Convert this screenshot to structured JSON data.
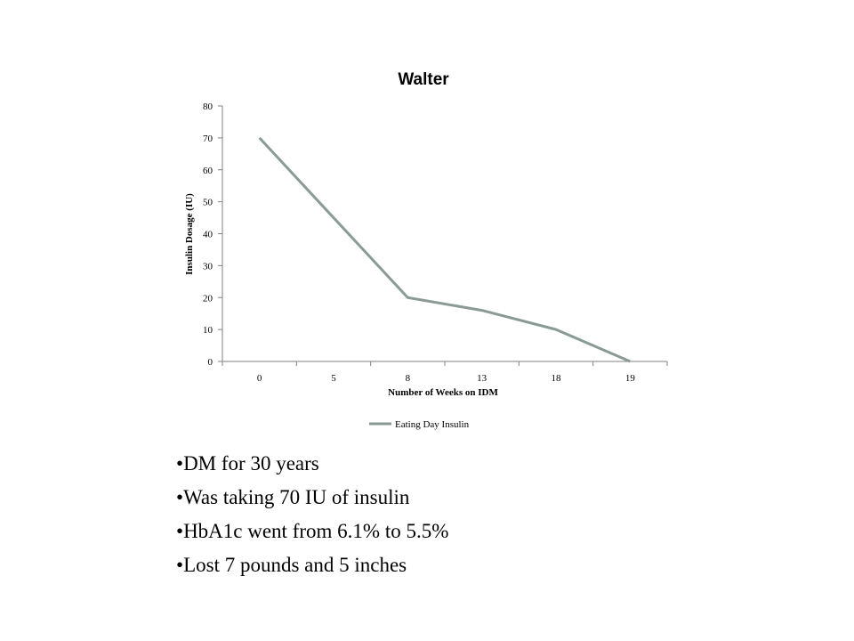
{
  "chart_data": {
    "type": "line",
    "title": "Walter",
    "xlabel": "Number of Weeks on IDM",
    "ylabel": "Insulin Dosage (IU)",
    "categories": [
      "0",
      "5",
      "8",
      "13",
      "18",
      "19"
    ],
    "series": [
      {
        "name": "Eating Day Insulin",
        "values": [
          70,
          45,
          20,
          16,
          10,
          0
        ]
      }
    ],
    "ylim": [
      0,
      80
    ],
    "yticks": [
      0,
      10,
      20,
      30,
      40,
      50,
      60,
      70,
      80
    ],
    "grid": false,
    "legend": "bottom",
    "line_color": "#8a9a96"
  },
  "bullets": [
    "DM for 30 years",
    "Was taking 70 IU of insulin",
    "HbA1c went from 6.1% to 5.5%",
    "Lost 7 pounds and 5 inches"
  ]
}
